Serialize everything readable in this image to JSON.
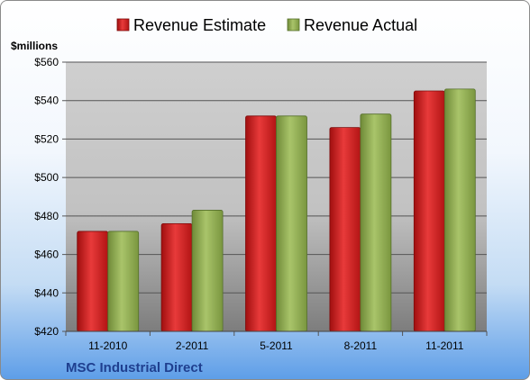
{
  "chart_data": {
    "type": "bar",
    "categories": [
      "11-2010",
      "2-2011",
      "5-2011",
      "8-2011",
      "11-2011"
    ],
    "series": [
      {
        "name": "Revenue Estimate",
        "values": [
          472,
          476,
          532,
          526,
          545
        ],
        "color": "#cc1f1f"
      },
      {
        "name": "Revenue Actual",
        "values": [
          472,
          483,
          532,
          533,
          546
        ],
        "color": "#8caa4e"
      }
    ],
    "ylabel": "$millions",
    "ylim": [
      420,
      560
    ],
    "yticks": [
      420,
      440,
      460,
      480,
      500,
      520,
      540,
      560
    ],
    "ytick_labels": [
      "$420",
      "$440",
      "$460",
      "$480",
      "$500",
      "$520",
      "$540",
      "$560"
    ],
    "legend": "top",
    "grid": true
  },
  "footer": {
    "company": "MSC Industrial Direct"
  }
}
